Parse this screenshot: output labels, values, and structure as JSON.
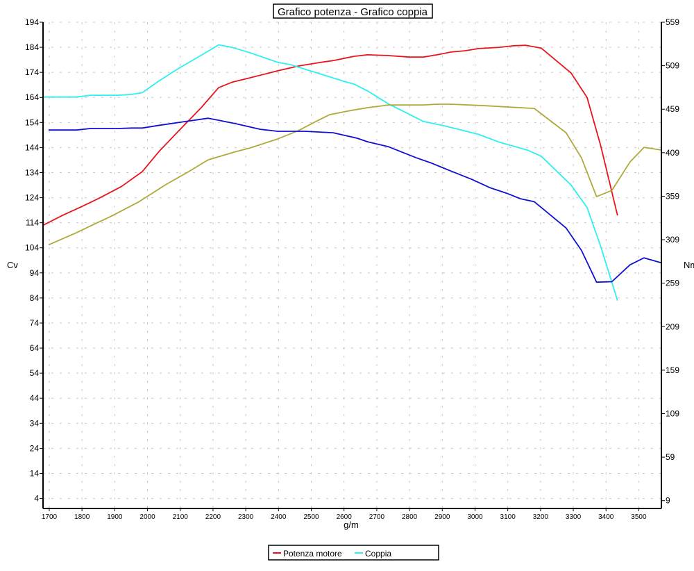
{
  "chart_data": {
    "type": "line",
    "title": "Grafico potenza - Grafico coppia",
    "xlabel": "g/m",
    "ylabel_left": "Cv",
    "ylabel_right": "Nm",
    "xlim": [
      1681,
      3569
    ],
    "ylim_left": [
      0,
      194
    ],
    "ylim_right": [
      0,
      559
    ],
    "xticks": [
      1700,
      1800,
      1900,
      2000,
      2100,
      2200,
      2300,
      2400,
      2500,
      2600,
      2700,
      2800,
      2900,
      3000,
      3100,
      3200,
      3300,
      3400,
      3500
    ],
    "yticks_left": [
      4,
      14,
      24,
      34,
      44,
      54,
      64,
      74,
      84,
      94,
      104,
      114,
      124,
      134,
      144,
      154,
      164,
      174,
      184,
      194
    ],
    "yticks_right": [
      9,
      59,
      109,
      159,
      209,
      259,
      309,
      359,
      409,
      459,
      509,
      559
    ],
    "grid": true,
    "legend_placement": "bottom",
    "series": [
      {
        "name": "Potenza motore",
        "color": "#e8141c",
        "axis": "left",
        "x": [
          1681,
          1740,
          1800,
          1857,
          1921,
          1984,
          2037,
          2100,
          2164,
          2217,
          2259,
          2312,
          2397,
          2460,
          2524,
          2567,
          2630,
          2672,
          2736,
          2800,
          2842,
          2884,
          2927,
          2969,
          3011,
          3075,
          3117,
          3155,
          3202,
          3293,
          3342,
          3384,
          3435
        ],
        "y": [
          113,
          116.9,
          120.5,
          124.1,
          128.5,
          134.4,
          142.7,
          151.3,
          159.9,
          167.9,
          170.1,
          171.8,
          174.6,
          176.5,
          177.9,
          178.7,
          180.4,
          181,
          180.7,
          180.1,
          180.1,
          181,
          182.1,
          182.6,
          183.5,
          184,
          184.6,
          184.8,
          183.7,
          173.8,
          164,
          144.6,
          116.9
        ]
      },
      {
        "name": "Coppia",
        "color": "#2ef0f0",
        "axis": "right",
        "x": [
          1681,
          1783,
          1825,
          1910,
          1952,
          1984,
          2037,
          2100,
          2164,
          2217,
          2259,
          2312,
          2397,
          2439,
          2481,
          2524,
          2609,
          2630,
          2672,
          2736,
          2800,
          2842,
          2905,
          2948,
          3011,
          3075,
          3160,
          3202,
          3293,
          3342,
          3384,
          3435
        ],
        "y": [
          473,
          473,
          475,
          475,
          476,
          478,
          492,
          507,
          521,
          533,
          530,
          524,
          513,
          510,
          505,
          500,
          490,
          488,
          480,
          465,
          453,
          445,
          440,
          436,
          430,
          421,
          412,
          405,
          372,
          346,
          301,
          239
        ]
      },
      {
        "color": "#b0a83a",
        "axis": "left",
        "x": [
          1698,
          1783,
          1825,
          1889,
          1974,
          2058,
          2122,
          2185,
          2270,
          2312,
          2397,
          2460,
          2513,
          2556,
          2609,
          2672,
          2736,
          2842,
          2884,
          2927,
          3032,
          3181,
          3278,
          3325,
          3371,
          3418,
          3473,
          3516,
          3569
        ],
        "y": [
          105.2,
          110,
          112.7,
          116.6,
          122.4,
          129.4,
          134.1,
          139.1,
          142.4,
          143.8,
          147.4,
          150.7,
          154.3,
          157.1,
          158.5,
          159.9,
          161,
          161,
          161.3,
          161.3,
          160.7,
          159.6,
          149.9,
          139.9,
          124.4,
          126.9,
          138.2,
          144.1,
          143
        ]
      },
      {
        "color": "#1010d0",
        "axis": "left",
        "x": [
          1698,
          1783,
          1825,
          1910,
          1952,
          1984,
          2037,
          2100,
          2185,
          2217,
          2270,
          2344,
          2397,
          2481,
          2567,
          2641,
          2672,
          2736,
          2821,
          2863,
          2927,
          2990,
          3045,
          3096,
          3138,
          3181,
          3278,
          3325,
          3371,
          3418,
          3473,
          3516,
          3569
        ],
        "y": [
          151,
          151,
          151.6,
          151.6,
          151.8,
          151.8,
          152.9,
          154.1,
          155.7,
          154.9,
          153.5,
          151.3,
          150.5,
          150.5,
          149.9,
          147.7,
          146.3,
          144.3,
          139.9,
          138,
          134.6,
          131.3,
          128,
          125.8,
          123.6,
          122.4,
          111.9,
          103,
          90.3,
          90.5,
          97.2,
          100,
          98
        ]
      }
    ]
  }
}
